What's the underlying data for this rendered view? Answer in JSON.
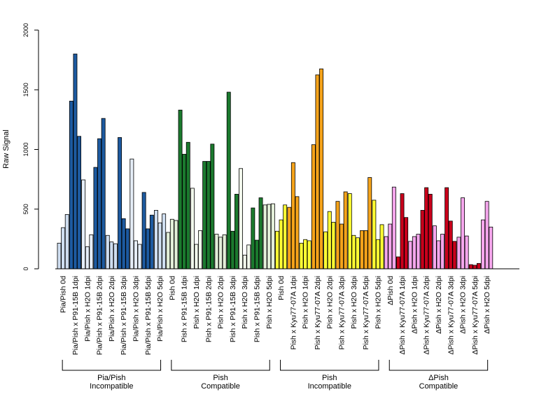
{
  "chart_data": {
    "type": "bar",
    "ylabel": "Raw Signal",
    "ylim": [
      0,
      2000
    ],
    "yticks": [
      0,
      500,
      1000,
      1500,
      2000
    ],
    "grid": false,
    "categories": [
      "Pia/Pish 0d",
      "Pia/Pish x P91-15B 1dpi",
      "Pia/Pish x H2O 1dpi",
      "Pia/Pish x P91-15B 2dpi",
      "Pia/Pish x H2O 2dpi",
      "Pia/Pish x P91-15B 3dpi",
      "Pia/Pish x H2O 3dpi",
      "Pia/Pish x P91-15B 5dpi",
      "Pia/Pish x H2O 5dpi",
      "Pish 0d",
      "Pish x P91-15B 1dpi",
      "Pish x H2O 1dpi",
      "Pish x P91-15B 2dpi",
      "Pish x H2O 2dpi",
      "Pish x P91-15B 3dpi",
      "Pish x H2O 3dpi",
      "Pish x P91-15B 5dpi",
      "Pish x H2O 5dpi",
      "Pish 0d",
      "Pish x Kyu77-07A 1dpi",
      "Pish x H2O 1dpi",
      "Pish x Kyu77-07A 2dpi",
      "Pish x H2O 2dpi",
      "Pish x Kyu77-07A 3dpi",
      "Pish x H2O 3dpi",
      "Pish x Kyu77-07A 5dpi",
      "Pish x H2O 5dpi",
      "ΔPish 0d",
      "ΔPish x Kyu77-07A 1dpi",
      "ΔPish x H2O 1dpi",
      "ΔPish x Kyu77-07A 2dpi",
      "ΔPish x H2O 2dpi",
      "ΔPish x Kyu77-07A 3dpi",
      "ΔPish x H2O 3dpi",
      "ΔPish x Kyu77-07A 5dpi",
      "ΔPish x H2O 5dpi"
    ],
    "values": [
      [
        215,
        345,
        455
      ],
      [
        1405,
        1800,
        1110
      ],
      [
        745,
        185,
        285
      ],
      [
        850,
        1090,
        1260
      ],
      [
        280,
        225,
        210
      ],
      [
        1100,
        420,
        335
      ],
      [
        920,
        235,
        205
      ],
      [
        640,
        335,
        450
      ],
      [
        490,
        385,
        460
      ],
      [
        305,
        415,
        405
      ],
      [
        1330,
        960,
        1060
      ],
      [
        675,
        205,
        320
      ],
      [
        900,
        900,
        1045
      ],
      [
        290,
        265,
        285
      ],
      [
        1480,
        315,
        625
      ],
      [
        840,
        115,
        200
      ],
      [
        510,
        240,
        595
      ],
      [
        535,
        540,
        545
      ],
      [
        315,
        410,
        535
      ],
      [
        515,
        890,
        605
      ],
      [
        215,
        245,
        235
      ],
      [
        1040,
        1625,
        1675
      ],
      [
        310,
        480,
        390
      ],
      [
        565,
        375,
        645
      ],
      [
        630,
        280,
        260
      ],
      [
        320,
        320,
        765
      ],
      [
        575,
        245,
        370
      ],
      [
        270,
        375,
        685
      ],
      [
        100,
        630,
        430
      ],
      [
        230,
        270,
        290
      ],
      [
        490,
        680,
        625
      ],
      [
        360,
        235,
        290
      ],
      [
        680,
        400,
        230
      ],
      [
        265,
        595,
        275
      ],
      [
        35,
        30,
        45
      ],
      [
        410,
        565,
        350
      ]
    ],
    "colors": [
      "#cfdef0",
      "#1d5aa0",
      "#e6eef8",
      "#1d5aa0",
      "#cfdef0",
      "#1d5aa0",
      "#e6eef8",
      "#1d5aa0",
      "#cfdef0",
      "#e3efd9",
      "#1b7a2e",
      "#f2f8ec",
      "#1b7a2e",
      "#e3efd9",
      "#1b7a2e",
      "#f2f8ec",
      "#1b7a2e",
      "#e3efd9",
      "#ffff33",
      "#f5a31a",
      "#ffff33",
      "#f5a31a",
      "#ffff33",
      "#f5a31a",
      "#ffff33",
      "#f5a31a",
      "#ffff33",
      "#f4a6ec",
      "#c9001b",
      "#f4a6ec",
      "#c9001b",
      "#f4a6ec",
      "#c9001b",
      "#f4a6ec",
      "#c9001b",
      "#f4a6ec"
    ],
    "groups": [
      {
        "line1": "Pia/Pish",
        "line2": "Incompatible",
        "start": 0,
        "end": 8
      },
      {
        "line1": "Pish",
        "line2": "Compatible",
        "start": 9,
        "end": 17
      },
      {
        "line1": "Pish",
        "line2": "Incompatible",
        "start": 18,
        "end": 26
      },
      {
        "line1": "ΔPish",
        "line2": "Compatible",
        "start": 27,
        "end": 35
      }
    ]
  }
}
